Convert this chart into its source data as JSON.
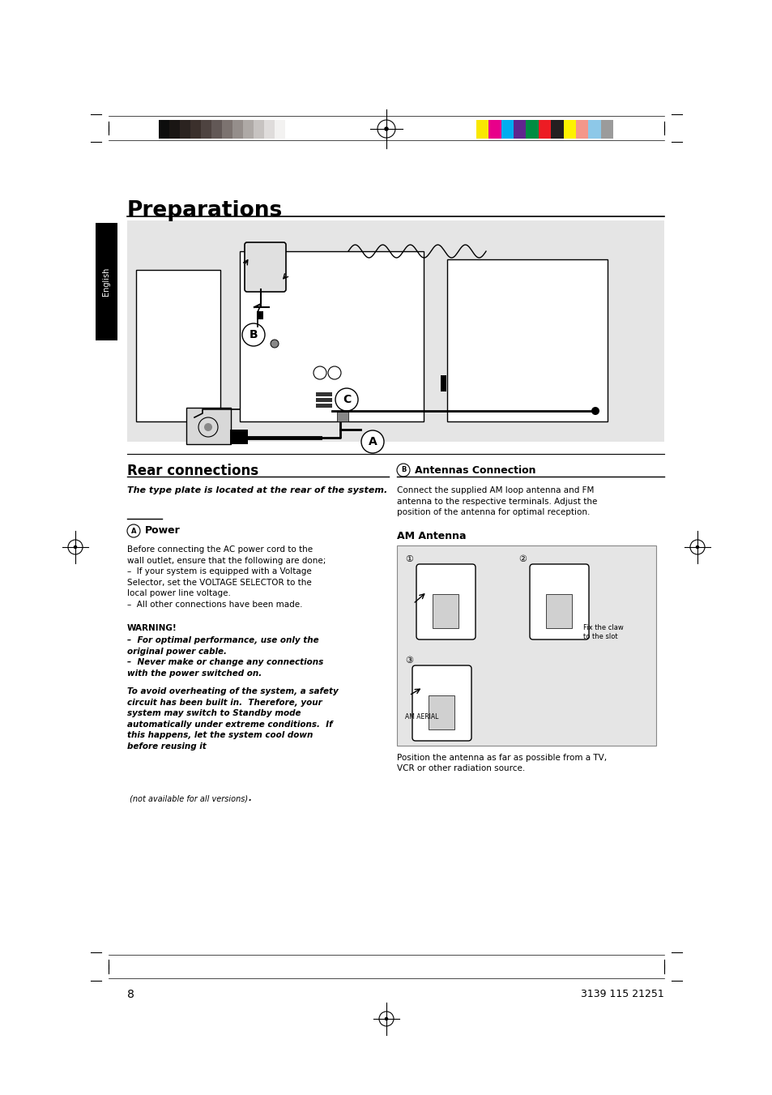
{
  "page_bg": "#ffffff",
  "title": "Preparations",
  "diagram_bg": "#e5e5e5",
  "grayscale_colors": [
    "#0d0d0d",
    "#1a1614",
    "#2b2320",
    "#3b302c",
    "#4e4340",
    "#625856",
    "#7c7370",
    "#958e8b",
    "#aea9a6",
    "#c7c3c1",
    "#dfdcdb",
    "#f3f2f1",
    "#ffffff"
  ],
  "color_colors": [
    "#f9e800",
    "#e8008a",
    "#00adef",
    "#60268e",
    "#008c42",
    "#ed1c24",
    "#231f20",
    "#fef200",
    "#f4978a",
    "#8dc8e8",
    "#9b9b9b"
  ],
  "page_number": "8",
  "product_code": "3139 115 21251",
  "section_left_title": "Rear connections",
  "section_right_title_circle": "B",
  "section_right_title": "Antennas Connection",
  "am_antenna_title": "AM Antenna",
  "italic_text_1": "The type plate is located at the rear of the system.",
  "power_label": "Power",
  "power_circle": "A",
  "power_body": "Before connecting the AC power cord to the\nwall outlet, ensure that the following are done;\n–  If your system is equipped with a Voltage\nSelector, set the VOLTAGE SELECTOR to the\nlocal power line voltage.\n–  All other connections have been made.",
  "warning_header": "WARNING!",
  "warning_body": "–  For optimal performance, use only the\noriginal power cable.\n–  Never make or change any connections\nwith the power switched on.",
  "safety_body": "To avoid overheating of the system, a safety\ncircuit has been built in.  Therefore, your\nsystem may switch to Standby mode\nautomatically under extreme conditions.  If\nthis happens, let the system cool down\nbefore reusing it",
  "safety_tail_italic": " (not available for all versions)",
  "safety_tail_bold": ".",
  "ant_body": "Connect the supplied AM loop antenna and FM\nantenna to the respective terminals. Adjust the\nposition of the antenna for optimal reception.",
  "am_caption": "Position the antenna as far as possible from a TV,\nVCR or other radiation source.",
  "fix_claw_text": "Fix the claw\nto the slot"
}
